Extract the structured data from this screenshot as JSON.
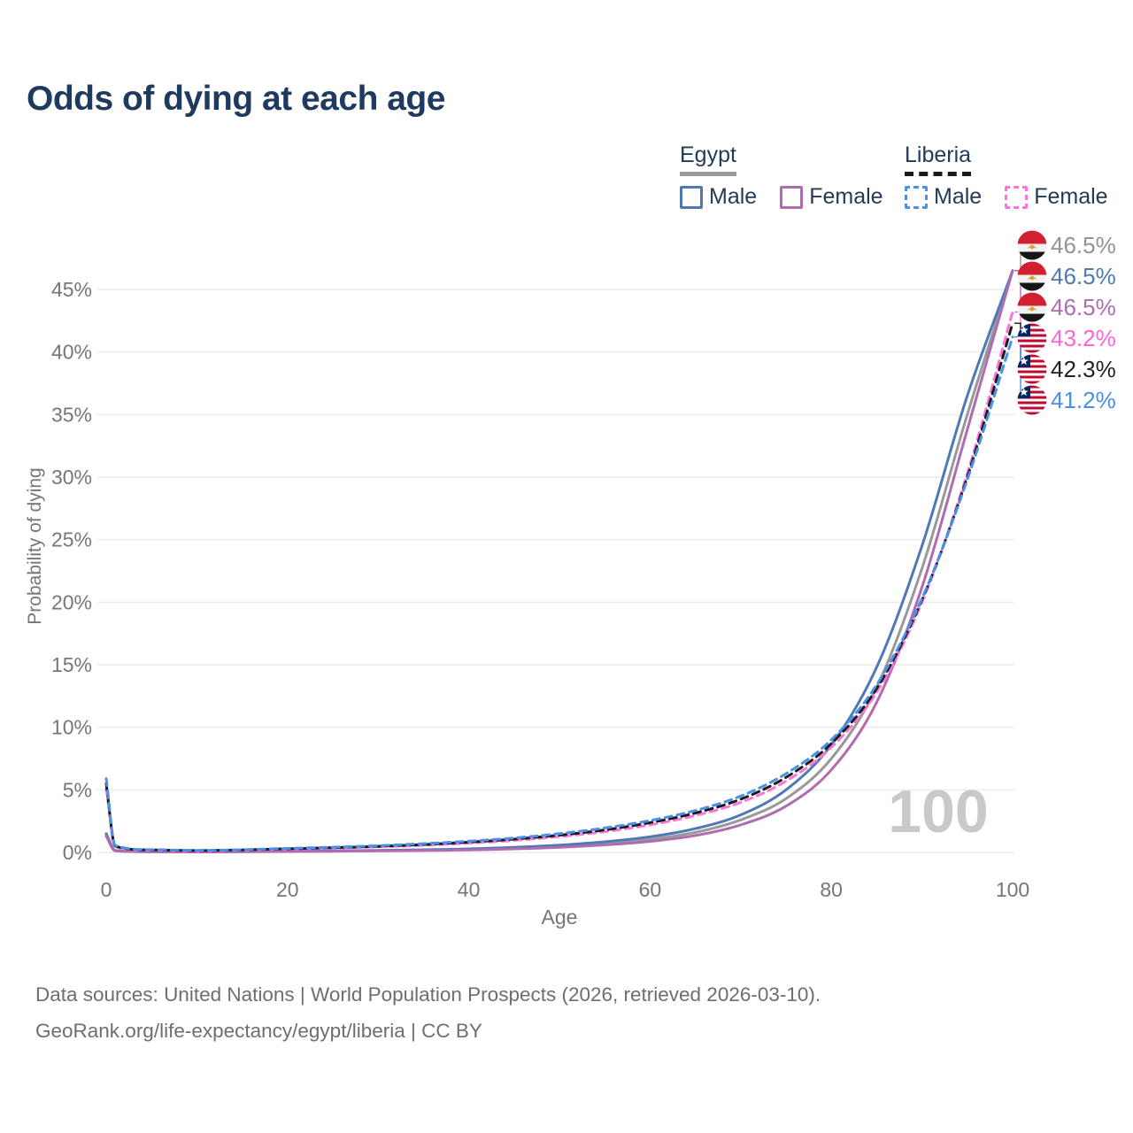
{
  "title": "Odds of dying at each age",
  "legend": {
    "egypt": {
      "label": "Egypt",
      "male": "Male",
      "female": "Female",
      "underline_color": "#999999",
      "male_color": "#4e79b5",
      "female_color": "#b06cb0"
    },
    "liberia": {
      "label": "Liberia",
      "male": "Male",
      "female": "Female",
      "underline_color": "#1a1a1a",
      "male_color": "#4a90e8",
      "female_color": "#ff74d8"
    }
  },
  "footer": {
    "line1": "Data sources: United Nations | World Population Prospects (2026, retrieved 2026-03-10).",
    "line2": "GeoRank.org/life-expectancy/egypt/liberia | CC BY"
  },
  "chart_data": {
    "type": "line",
    "title": "Odds of dying at each age",
    "xlabel": "Age",
    "ylabel": "Probability of dying",
    "x_range": [
      0,
      100
    ],
    "y_range": [
      0,
      48
    ],
    "grid": "horizontal",
    "gridline_color": "#ececec",
    "tick_color": "#767676",
    "watermark": "100",
    "watermark_color": "#c9c9c9",
    "x_ticks": [
      {
        "v": 0,
        "label": "0"
      },
      {
        "v": 20,
        "label": "20"
      },
      {
        "v": 40,
        "label": "40"
      },
      {
        "v": 60,
        "label": "60"
      },
      {
        "v": 80,
        "label": "80"
      },
      {
        "v": 100,
        "label": "100"
      }
    ],
    "y_ticks": [
      {
        "v": 0,
        "label": "0%"
      },
      {
        "v": 5,
        "label": "5%"
      },
      {
        "v": 10,
        "label": "10%"
      },
      {
        "v": 15,
        "label": "15%"
      },
      {
        "v": 20,
        "label": "20%"
      },
      {
        "v": 25,
        "label": "25%"
      },
      {
        "v": 30,
        "label": "30%"
      },
      {
        "v": 35,
        "label": "35%"
      },
      {
        "v": 40,
        "label": "40%"
      },
      {
        "v": 45,
        "label": "45%"
      }
    ],
    "x": [
      0,
      1,
      5,
      10,
      15,
      20,
      25,
      30,
      35,
      40,
      45,
      50,
      55,
      60,
      65,
      70,
      75,
      80,
      85,
      90,
      95,
      100
    ],
    "series": [
      {
        "id": "egypt-both",
        "country": "Egypt",
        "sex": "both",
        "style": "solid",
        "color": "#999999",
        "flag": "egypt",
        "end_label": "46.5%",
        "end_label_color": "#8f9499",
        "values": [
          1.4,
          0.14,
          0.055,
          0.045,
          0.06,
          0.09,
          0.11,
          0.14,
          0.18,
          0.24,
          0.34,
          0.49,
          0.72,
          1.05,
          1.6,
          2.6,
          4.3,
          7.5,
          13.2,
          22.7,
          35.0,
          46.5
        ]
      },
      {
        "id": "egypt-male",
        "country": "Egypt",
        "sex": "male",
        "style": "solid",
        "color": "#4e79b5",
        "flag": "egypt",
        "end_label": "46.5%",
        "end_label_color": "#4e79b5",
        "values": [
          1.5,
          0.15,
          0.06,
          0.05,
          0.07,
          0.1,
          0.13,
          0.16,
          0.21,
          0.28,
          0.4,
          0.58,
          0.85,
          1.25,
          1.9,
          3.0,
          5.0,
          8.6,
          14.8,
          24.5,
          36.5,
          46.5
        ]
      },
      {
        "id": "egypt-female",
        "country": "Egypt",
        "sex": "female",
        "style": "solid",
        "color": "#b06cb0",
        "flag": "egypt",
        "end_label": "46.5%",
        "end_label_color": "#b06cb0",
        "values": [
          1.3,
          0.12,
          0.05,
          0.04,
          0.05,
          0.07,
          0.09,
          0.12,
          0.15,
          0.2,
          0.28,
          0.41,
          0.6,
          0.88,
          1.35,
          2.2,
          3.7,
          6.6,
          12.0,
          21.2,
          33.8,
          46.5
        ]
      },
      {
        "id": "liberia-female",
        "country": "Liberia",
        "sex": "female",
        "style": "dashed",
        "color": "#ff74d8",
        "flag": "liberia",
        "end_label": "43.2%",
        "end_label_color": "#ff66d4",
        "values": [
          5.1,
          0.46,
          0.18,
          0.13,
          0.18,
          0.26,
          0.35,
          0.44,
          0.57,
          0.74,
          0.96,
          1.26,
          1.66,
          2.2,
          2.95,
          4.0,
          5.7,
          8.4,
          12.8,
          20.0,
          30.3,
          43.2
        ]
      },
      {
        "id": "liberia-both",
        "country": "Liberia",
        "sex": "both",
        "style": "dashed",
        "color": "#1b1b1b",
        "flag": "liberia",
        "end_label": "42.3%",
        "end_label_color": "#222222",
        "values": [
          5.5,
          0.5,
          0.2,
          0.15,
          0.2,
          0.29,
          0.38,
          0.49,
          0.63,
          0.82,
          1.06,
          1.38,
          1.8,
          2.38,
          3.15,
          4.25,
          6.0,
          8.7,
          13.1,
          20.2,
          30.0,
          42.3
        ]
      },
      {
        "id": "liberia-male",
        "country": "Liberia",
        "sex": "male",
        "style": "dashed",
        "color": "#4a90e8",
        "flag": "liberia",
        "end_label": "41.2%",
        "end_label_color": "#4a90e8",
        "values": [
          5.9,
          0.55,
          0.22,
          0.16,
          0.22,
          0.32,
          0.42,
          0.54,
          0.7,
          0.9,
          1.15,
          1.5,
          1.95,
          2.55,
          3.35,
          4.5,
          6.3,
          9.0,
          13.4,
          20.3,
          29.8,
          41.2
        ]
      }
    ]
  }
}
